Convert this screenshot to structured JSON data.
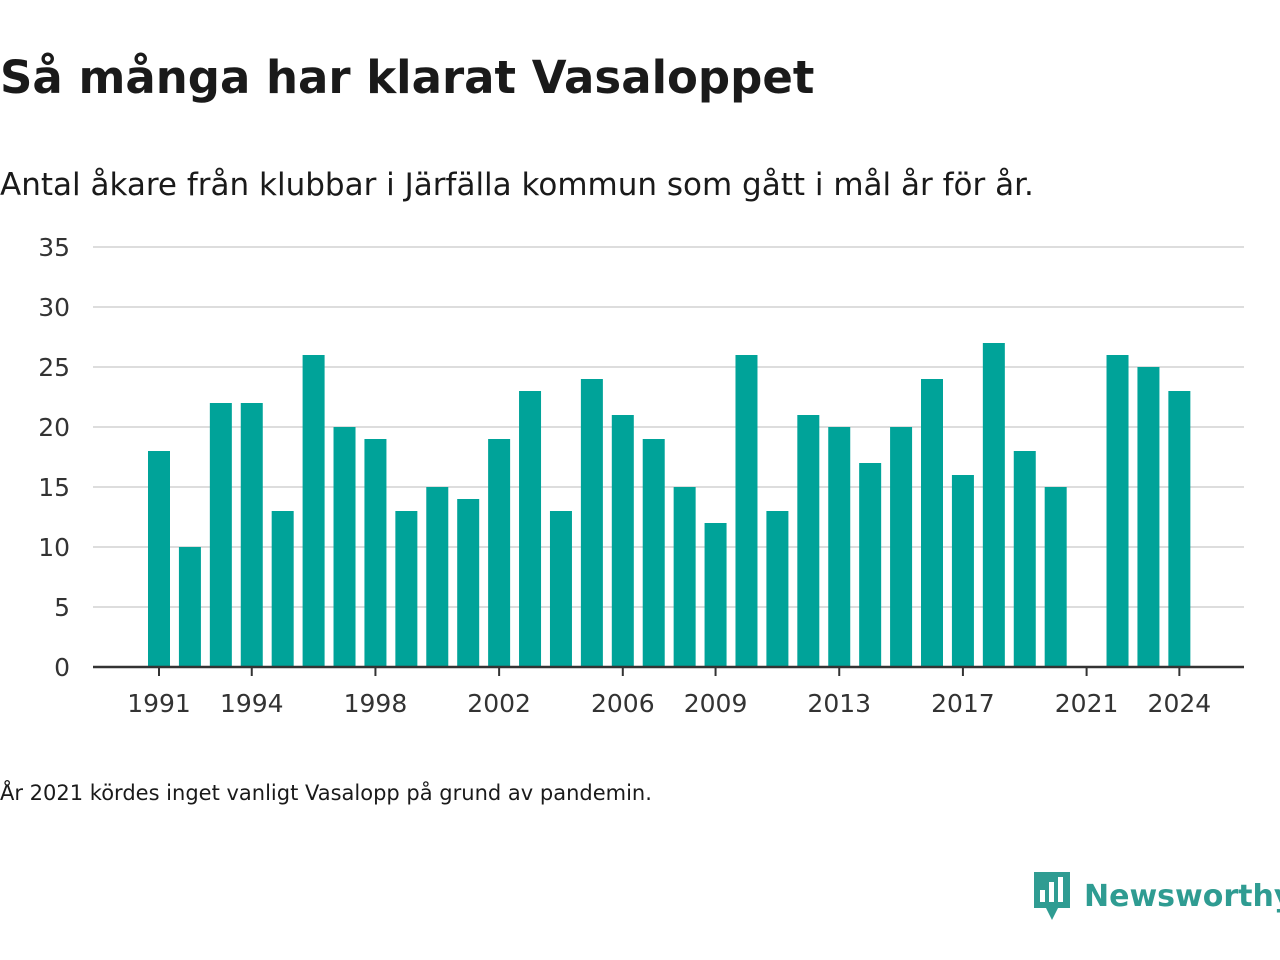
{
  "header": {
    "title": "Så många har klarat Vasaloppet",
    "subtitle": "Antal åkare från klubbar i Järfälla kommun som gått i mål år för år."
  },
  "footer": {
    "note": "År 2021 kördes inget vanligt Vasalopp på grund av pandemin.",
    "brand": "Newsworthy",
    "brand_icon": "newsworthy-logo-icon"
  },
  "colors": {
    "bar": "#00a399",
    "grid": "#dddddd",
    "axis": "#333333",
    "brand": "#2f9c92"
  },
  "chart_data": {
    "type": "bar",
    "title": "Så många har klarat Vasaloppet",
    "subtitle": "Antal åkare från klubbar i Järfälla kommun som gått i mål år för år.",
    "xlabel": "",
    "ylabel": "",
    "ylim": [
      0,
      35
    ],
    "yticks": [
      0,
      5,
      10,
      15,
      20,
      25,
      30,
      35
    ],
    "xtick_labels": [
      1991,
      1994,
      1998,
      2002,
      2006,
      2009,
      2013,
      2017,
      2021,
      2024
    ],
    "grid": "horizontal",
    "legend": "none",
    "categories": [
      1991,
      1992,
      1993,
      1994,
      1995,
      1996,
      1997,
      1998,
      1999,
      2000,
      2001,
      2002,
      2003,
      2004,
      2005,
      2006,
      2007,
      2008,
      2009,
      2010,
      2011,
      2012,
      2013,
      2014,
      2015,
      2016,
      2017,
      2018,
      2019,
      2020,
      2021,
      2022,
      2023,
      2024
    ],
    "values": [
      18,
      10,
      22,
      22,
      13,
      26,
      20,
      19,
      13,
      15,
      14,
      19,
      23,
      13,
      24,
      21,
      19,
      15,
      12,
      26,
      13,
      21,
      20,
      17,
      20,
      24,
      16,
      27,
      18,
      15,
      null,
      26,
      25,
      23
    ]
  }
}
